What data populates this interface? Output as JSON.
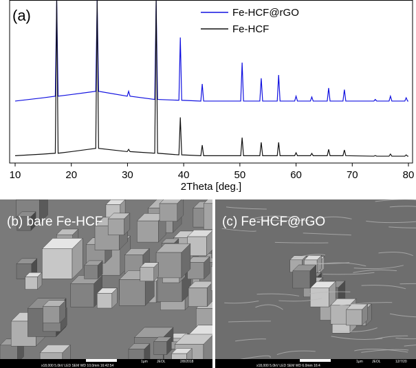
{
  "chart_data": {
    "type": "line",
    "panel_label": "(a)",
    "x_label": "2Theta [deg.]",
    "x": [
      10,
      15,
      17.15,
      17.4,
      17.65,
      20,
      24.35,
      24.6,
      24.85,
      29.95,
      30.2,
      30.45,
      34.85,
      35.1,
      35.35,
      39.15,
      39.4,
      39.65,
      43.05,
      43.3,
      43.55,
      50.15,
      50.4,
      50.65,
      53.55,
      53.8,
      54.05,
      56.65,
      56.9,
      57.15,
      59.75,
      60,
      60.25,
      62.55,
      62.8,
      63.05,
      65.55,
      65.8,
      66.05,
      68.35,
      68.6,
      68.85,
      73.85,
      74.1,
      74.35,
      76.55,
      76.8,
      77.05,
      79.35,
      79.6,
      79.85,
      80
    ],
    "series": [
      {
        "name": "Fe-HCF@rGO",
        "color": "#1010e0",
        "values": [
          38,
          40,
          41,
          100,
          41,
          42,
          44,
          100,
          44,
          41,
          44,
          41,
          39,
          100,
          39,
          38.5,
          77,
          38.5,
          38,
          48.5,
          38,
          38,
          61.6,
          38,
          38,
          52,
          38,
          38,
          54,
          38,
          38,
          41,
          38,
          38,
          40.5,
          38,
          38,
          46,
          38,
          38,
          45,
          38,
          38,
          39,
          38,
          38,
          41,
          38,
          38,
          40,
          38,
          38
        ]
      },
      {
        "name": "Fe-HCF",
        "color": "#111111",
        "values": [
          4.5,
          5.5,
          6,
          100,
          6,
          7,
          9,
          100,
          9,
          7,
          8.4,
          7,
          6,
          100,
          6,
          5,
          28,
          5,
          4.5,
          11,
          4.5,
          4.5,
          15.6,
          4.5,
          4.5,
          12.7,
          4.5,
          4.5,
          12.7,
          4.5,
          4.5,
          6.3,
          4.5,
          4.5,
          5.9,
          4.5,
          4.5,
          8.4,
          4.5,
          4.5,
          8,
          4.5,
          4.2,
          4.6,
          4.2,
          4.2,
          5.5,
          4.2,
          4.2,
          5,
          4.2,
          4.2
        ]
      }
    ],
    "xlim": [
      10,
      80
    ],
    "xticks": [
      10,
      20,
      30,
      40,
      50,
      60,
      70,
      80
    ],
    "ylim": [
      0,
      100
    ],
    "grid": false,
    "legend": "top"
  },
  "images": [
    {
      "label": "(b) bare Fe-HCF",
      "info": "x18,000   5.0kV  LED   SEM   WD 10.0mm 16:42:54",
      "scale": "1μm",
      "brand": "JEOL",
      "date": "2/8/2018"
    },
    {
      "label": "(c) Fe-HCF@rGO",
      "info": "x18,000   5.0kV  LED   SEM   WD 6.0mm 16:4",
      "scale": "1μm",
      "brand": "JEOL",
      "date": "12/7/20"
    }
  ]
}
